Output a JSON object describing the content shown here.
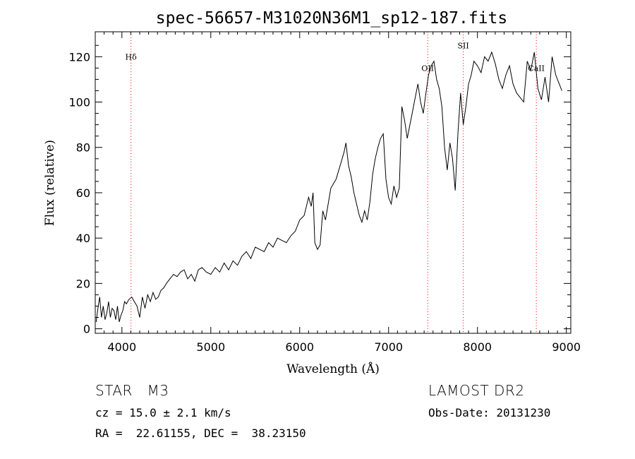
{
  "chart_data": {
    "type": "line",
    "title": "spec-56657-M31020N36M1_sp12-187.fits",
    "xlabel": "Wavelength (Å)",
    "ylabel": "Flux (relative)",
    "xlim": [
      3700,
      9050
    ],
    "ylim": [
      -2,
      131
    ],
    "xticks": [
      4000,
      5000,
      6000,
      7000,
      8000,
      9000
    ],
    "yticks": [
      0,
      20,
      40,
      60,
      80,
      100,
      120
    ],
    "grid": false,
    "line_color": "#000000",
    "marker_color": "#ff0000",
    "lines": [
      {
        "label": "Hδ",
        "wavelength": 4102
      },
      {
        "label": "OII",
        "wavelength": 7440
      },
      {
        "label": "SII",
        "wavelength": 7840
      },
      {
        "label": "CaII",
        "wavelength": 8662
      }
    ],
    "series": [
      {
        "x": [
          3710,
          3730,
          3750,
          3770,
          3790,
          3810,
          3830,
          3850,
          3870,
          3890,
          3910,
          3930,
          3950,
          3970,
          3990,
          4010,
          4030,
          4050,
          4080,
          4110,
          4140,
          4170,
          4200,
          4230,
          4260,
          4290,
          4320,
          4350,
          4380,
          4410,
          4440,
          4470,
          4500,
          4540,
          4580,
          4620,
          4660,
          4700,
          4740,
          4780,
          4820,
          4860,
          4900,
          4950,
          5000,
          5050,
          5100,
          5150,
          5200,
          5250,
          5300,
          5350,
          5400,
          5450,
          5500,
          5550,
          5600,
          5650,
          5700,
          5750,
          5800,
          5850,
          5900,
          5950,
          6000,
          6050,
          6100,
          6130,
          6150,
          6170,
          6200,
          6230,
          6260,
          6290,
          6320,
          6350,
          6380,
          6410,
          6440,
          6470,
          6500,
          6520,
          6550,
          6580,
          6610,
          6640,
          6670,
          6700,
          6730,
          6760,
          6790,
          6820,
          6850,
          6880,
          6910,
          6940,
          6970,
          7000,
          7030,
          7060,
          7090,
          7120,
          7150,
          7180,
          7210,
          7240,
          7270,
          7300,
          7330,
          7360,
          7390,
          7420,
          7450,
          7480,
          7510,
          7540,
          7570,
          7600,
          7630,
          7660,
          7690,
          7720,
          7750,
          7780,
          7810,
          7840,
          7870,
          7900,
          7930,
          7960,
          8000,
          8040,
          8080,
          8120,
          8160,
          8200,
          8240,
          8280,
          8320,
          8360,
          8400,
          8440,
          8480,
          8520,
          8560,
          8600,
          8640,
          8680,
          8720,
          8760,
          8800,
          8840,
          8880,
          8920,
          8950
        ],
        "y": [
          3,
          9,
          14,
          5,
          10,
          4,
          7,
          12,
          5,
          9,
          8,
          4,
          10,
          3,
          6,
          8,
          12,
          11,
          13,
          14,
          12,
          10,
          5,
          14,
          9,
          15,
          12,
          16,
          13,
          14,
          17,
          18,
          20,
          22,
          24,
          23,
          25,
          26,
          22,
          24,
          21,
          26,
          27,
          25,
          24,
          27,
          25,
          29,
          26,
          30,
          28,
          32,
          34,
          31,
          36,
          35,
          34,
          38,
          36,
          40,
          39,
          38,
          41,
          43,
          48,
          50,
          58,
          54,
          60,
          38,
          35,
          37,
          52,
          48,
          55,
          62,
          64,
          66,
          70,
          74,
          78,
          82,
          72,
          67,
          60,
          55,
          50,
          47,
          52,
          48,
          56,
          68,
          75,
          80,
          84,
          86,
          66,
          58,
          55,
          63,
          58,
          62,
          98,
          92,
          84,
          90,
          96,
          102,
          108,
          100,
          95,
          104,
          112,
          116,
          118,
          110,
          106,
          98,
          80,
          70,
          82,
          75,
          61,
          86,
          104,
          90,
          98,
          108,
          112,
          118,
          116,
          113,
          120,
          118,
          122,
          117,
          110,
          106,
          112,
          116,
          108,
          104,
          102,
          100,
          118,
          114,
          122,
          106,
          101,
          111,
          100,
          120,
          112,
          108,
          105
        ]
      }
    ],
    "info": {
      "class_line": "STAR   M3",
      "survey": "LAMOST DR2",
      "cz": "cz = 15.0 ± 2.1 km/s",
      "obs_date": "Obs-Date: 20131230",
      "coords": "RA =  22.61155, DEC =  38.23150"
    }
  }
}
